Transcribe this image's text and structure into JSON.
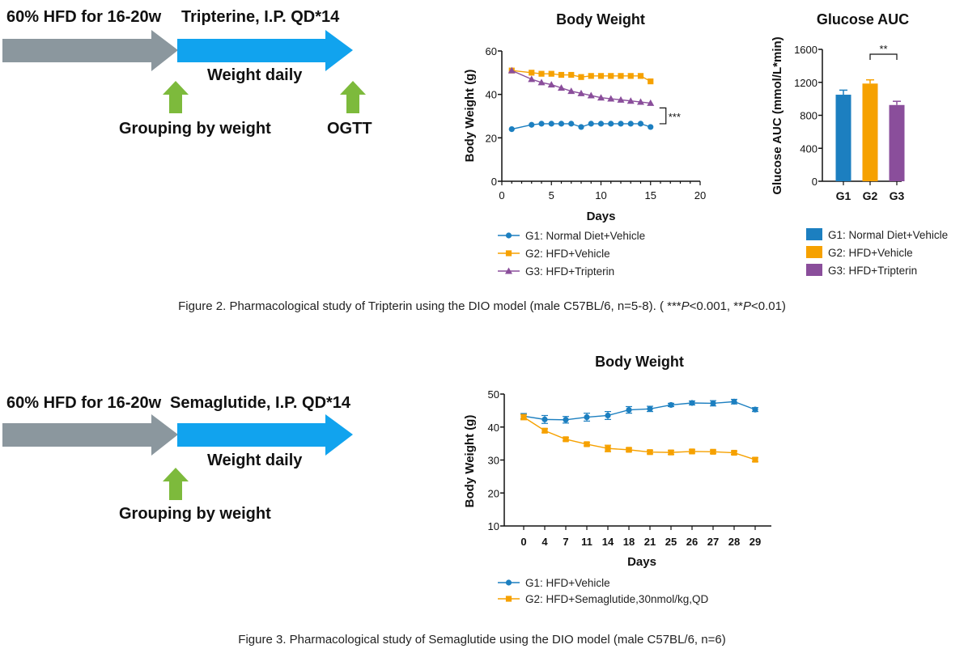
{
  "colors": {
    "gray_arrow": "#8B979E",
    "blue_arrow": "#11A3EE",
    "green_arrow": "#7DBA3C",
    "g1": "#1C7FC0",
    "g2": "#F6A100",
    "g3": "#8A4E9B",
    "axis": "#111111"
  },
  "figure2": {
    "protocol": {
      "stage1": "60% HFD for 16-20w",
      "stage2": "Tripterine, I.P. QD*14",
      "weight_daily": "Weight daily",
      "grouping": "Grouping by weight",
      "ogtt": "OGTT"
    },
    "caption_prefix": "Figure 2. Pharmacological study of Tripterin using the DIO model (male C57BL/6, n=5-8). ( ***",
    "caption_p1": "P",
    "caption_mid": "<0.001, **",
    "caption_p2": "P",
    "caption_suffix": "<0.01)",
    "significance_bw": "***",
    "significance_auc": "**"
  },
  "figure3": {
    "protocol": {
      "stage1": "60% HFD for 16-20w",
      "stage2": "Semaglutide, I.P. QD*14",
      "weight_daily": "Weight daily",
      "grouping": "Grouping by weight"
    },
    "caption": "Figure 3. Pharmacological study of Semaglutide using the DIO model (male C57BL/6, n=6)"
  },
  "chart_data": [
    {
      "id": "fig2_body_weight",
      "type": "line",
      "title": "Body Weight",
      "xlabel": "Days",
      "ylabel": "Body Weight (g)",
      "xlim": [
        0,
        20
      ],
      "ylim": [
        0,
        60
      ],
      "x_ticks": [
        0,
        5,
        10,
        15,
        20
      ],
      "y_ticks": [
        0,
        20,
        40,
        60
      ],
      "x": [
        1,
        3,
        4,
        5,
        6,
        7,
        8,
        9,
        10,
        11,
        12,
        13,
        14,
        15
      ],
      "series": [
        {
          "name": "G1: Normal Diet+Vehicle",
          "marker": "circle",
          "color_key": "g1",
          "values": [
            24,
            26,
            26.5,
            26.5,
            26.5,
            26.5,
            25,
            26.5,
            26.5,
            26.5,
            26.5,
            26.5,
            26.5,
            25
          ]
        },
        {
          "name": "G2: HFD+Vehicle",
          "marker": "square",
          "color_key": "g2",
          "values": [
            51,
            50,
            49.5,
            49.5,
            49,
            49,
            48,
            48.5,
            48.5,
            48.5,
            48.5,
            48.5,
            48.5,
            46
          ]
        },
        {
          "name": "G3: HFD+Tripterin",
          "marker": "triangle",
          "color_key": "g3",
          "values": [
            51,
            47,
            45.5,
            44.5,
            43,
            41.5,
            40.5,
            39.5,
            38.5,
            38,
            37.5,
            37,
            36.5,
            36
          ]
        }
      ],
      "legend": "bottom"
    },
    {
      "id": "fig2_glucose_auc",
      "type": "bar",
      "title": "Glucose AUC",
      "xlabel": "",
      "ylabel": "Glucose AUC  (mmol/L*min)",
      "ylim": [
        0,
        1600
      ],
      "y_ticks": [
        0,
        400,
        800,
        1200,
        1600
      ],
      "categories": [
        "G1",
        "G2",
        "G3"
      ],
      "values": [
        1050,
        1185,
        925
      ],
      "errors": [
        55,
        45,
        45
      ],
      "color_keys": [
        "g1",
        "g2",
        "g3"
      ],
      "legend_entries": [
        "G1: Normal Diet+Vehicle",
        "G2: HFD+Vehicle",
        "G3: HFD+Tripterin"
      ],
      "legend": "bottom"
    },
    {
      "id": "fig3_body_weight",
      "type": "line",
      "title": "Body Weight",
      "xlabel": "Days",
      "ylabel": "Body Weight (g)",
      "ylim": [
        10,
        50
      ],
      "y_ticks": [
        10,
        20,
        30,
        40,
        50
      ],
      "categories": [
        "0",
        "4",
        "7",
        "11",
        "14",
        "18",
        "21",
        "25",
        "26",
        "27",
        "28",
        "29"
      ],
      "series": [
        {
          "name": "G1: HFD+Vehicle",
          "marker": "circle",
          "color_key": "g1",
          "values": [
            43.3,
            42.3,
            42.2,
            43.0,
            43.5,
            45.2,
            45.5,
            46.7,
            47.3,
            47.2,
            47.7,
            45.3
          ],
          "errors": [
            0.8,
            1.2,
            1.0,
            1.2,
            1.2,
            1.0,
            0.8,
            0.5,
            0.6,
            0.8,
            0.7,
            0.6
          ]
        },
        {
          "name": "G2: HFD+Semaglutide,30nmol/kg,QD",
          "marker": "square",
          "color_key": "g2",
          "values": [
            43.0,
            38.9,
            36.3,
            34.8,
            33.5,
            33.1,
            32.4,
            32.3,
            32.6,
            32.5,
            32.2,
            30.1
          ],
          "errors": [
            0.8,
            0.6,
            0.5,
            0.5,
            1.0,
            0.5,
            0.5,
            0.6,
            0.5,
            0.5,
            0.5,
            0.6
          ]
        }
      ],
      "legend": "bottom"
    }
  ]
}
